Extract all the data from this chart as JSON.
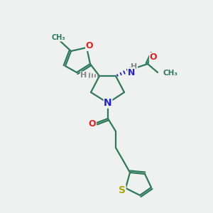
{
  "background_color": "#eff0f0",
  "bond_color": "#2d7a5a",
  "bond_width": 1.6,
  "atom_colors": {
    "O": "#dd2222",
    "N": "#2222cc",
    "S": "#aaaa00",
    "H": "#888888",
    "C": "#2d7a5a"
  },
  "fig_size": [
    3.0,
    3.0
  ],
  "dpi": 100
}
